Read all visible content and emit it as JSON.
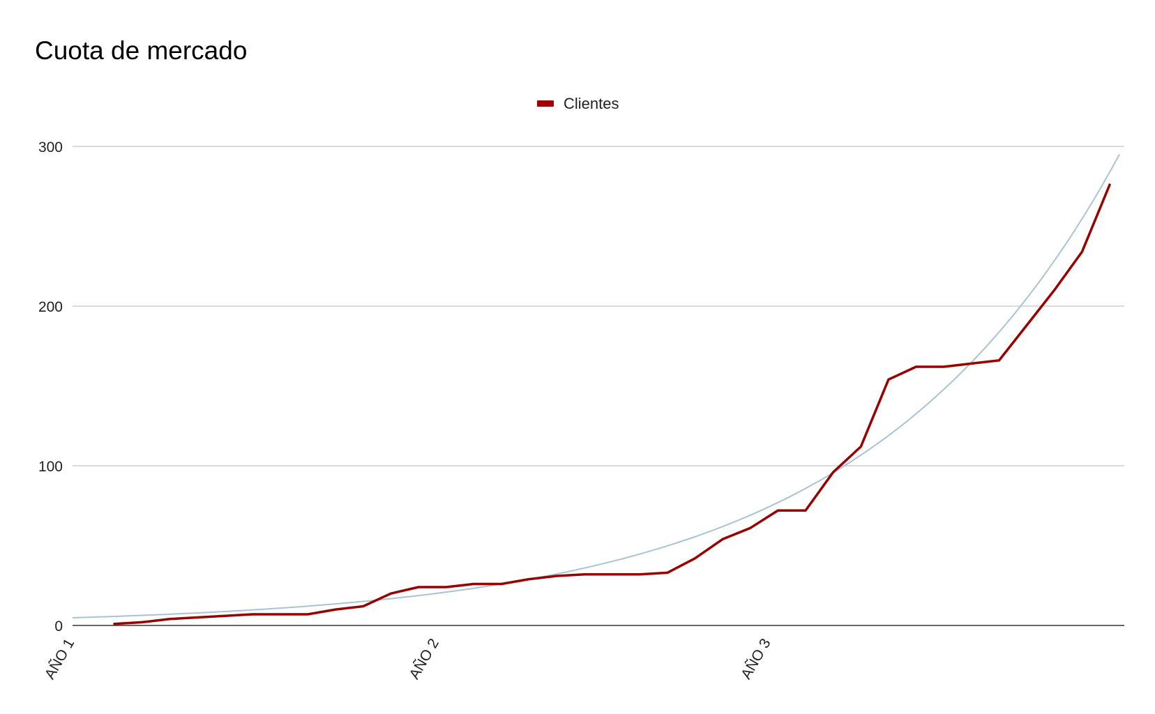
{
  "chart_data": {
    "type": "line",
    "title": "Cuota de mercado",
    "xlabel": "",
    "ylabel": "",
    "ylim": [
      0,
      300
    ],
    "y_ticks": [
      "0",
      "100",
      "200",
      "300"
    ],
    "x_tick_labels": [
      {
        "label": "AÑO 1",
        "index": 0
      },
      {
        "label": "AÑO 2",
        "index": 12
      },
      {
        "label": "AÑO 3",
        "index": 24
      }
    ],
    "grid": true,
    "legend_position": "top-center",
    "series": [
      {
        "name": "Clientes",
        "color": "#990000",
        "values": [
          1,
          2,
          4,
          5,
          6,
          7,
          7,
          7,
          10,
          12,
          20,
          24,
          24,
          26,
          26,
          29,
          31,
          32,
          32,
          32,
          33,
          42,
          54,
          61,
          72,
          72,
          96,
          112,
          154,
          162,
          162,
          164,
          166,
          188,
          210,
          234,
          276
        ]
      }
    ],
    "trendline": {
      "type": "exponential",
      "color": "#a8c4d4",
      "start_value": 4.8,
      "end_value": 295
    }
  }
}
